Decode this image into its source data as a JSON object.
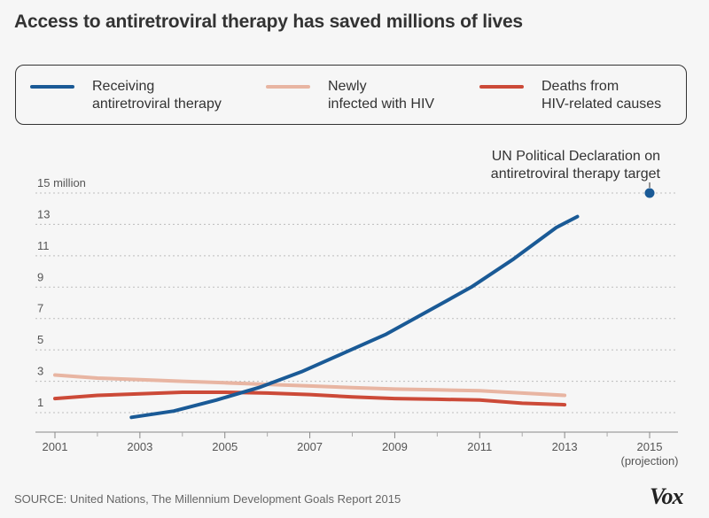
{
  "title": "Access to antiretroviral therapy has saved millions of lives",
  "legend": [
    {
      "label": "Receiving\nantiretroviral therapy",
      "color": "#1a5a96"
    },
    {
      "label": "Newly\ninfected with HIV",
      "color": "#e8b5a2"
    },
    {
      "label": "Deaths from\nHIV-related causes",
      "color": "#cc4a38"
    }
  ],
  "annotation": "UN Political Declaration on\nantiretroviral therapy target",
  "source": "SOURCE: United Nations, The Millennium Development Goals Report 2015",
  "logo": "Vox",
  "chart_data": {
    "type": "line",
    "title": "Access to antiretroviral therapy has saved millions of lives",
    "y_unit_label": "15 million",
    "yticks": [
      1,
      3,
      5,
      7,
      9,
      11,
      13,
      15
    ],
    "ylim": [
      0,
      16
    ],
    "xlim": [
      2001,
      2015
    ],
    "xticks": [
      {
        "x": 2001,
        "label": "2001"
      },
      {
        "x": 2003,
        "label": "2003"
      },
      {
        "x": 2005,
        "label": "2005"
      },
      {
        "x": 2007,
        "label": "2007"
      },
      {
        "x": 2009,
        "label": "2009"
      },
      {
        "x": 2011,
        "label": "2011"
      },
      {
        "x": 2013,
        "label": "2013"
      },
      {
        "x": 2015,
        "label": "2015",
        "sublabel": "(projection)"
      }
    ],
    "grid": true,
    "series": [
      {
        "name": "Receiving antiretroviral therapy",
        "color": "#1a5a96",
        "points": [
          [
            2002.8,
            0.7
          ],
          [
            2003.8,
            1.1
          ],
          [
            2004.8,
            1.8
          ],
          [
            2005.8,
            2.6
          ],
          [
            2006.8,
            3.6
          ],
          [
            2007.8,
            4.8
          ],
          [
            2008.8,
            6.0
          ],
          [
            2009.8,
            7.5
          ],
          [
            2010.8,
            9.0
          ],
          [
            2011.8,
            10.8
          ],
          [
            2012.8,
            12.8
          ],
          [
            2013.3,
            13.5
          ]
        ]
      },
      {
        "name": "Newly infected with HIV",
        "color": "#e8b5a2",
        "points": [
          [
            2001,
            3.4
          ],
          [
            2002,
            3.2
          ],
          [
            2003,
            3.1
          ],
          [
            2004,
            3.0
          ],
          [
            2005,
            2.9
          ],
          [
            2006,
            2.8
          ],
          [
            2007,
            2.7
          ],
          [
            2008,
            2.6
          ],
          [
            2009,
            2.5
          ],
          [
            2010,
            2.45
          ],
          [
            2011,
            2.4
          ],
          [
            2012,
            2.25
          ],
          [
            2013,
            2.1
          ]
        ]
      },
      {
        "name": "Deaths from HIV-related causes",
        "color": "#cc4a38",
        "points": [
          [
            2001,
            1.9
          ],
          [
            2002,
            2.1
          ],
          [
            2003,
            2.2
          ],
          [
            2004,
            2.3
          ],
          [
            2005,
            2.3
          ],
          [
            2006,
            2.25
          ],
          [
            2007,
            2.15
          ],
          [
            2008,
            2.0
          ],
          [
            2009,
            1.9
          ],
          [
            2010,
            1.85
          ],
          [
            2011,
            1.8
          ],
          [
            2012,
            1.6
          ],
          [
            2013,
            1.5
          ]
        ]
      }
    ],
    "target_point": {
      "x": 2015,
      "y": 15,
      "color": "#1a5a96"
    }
  }
}
